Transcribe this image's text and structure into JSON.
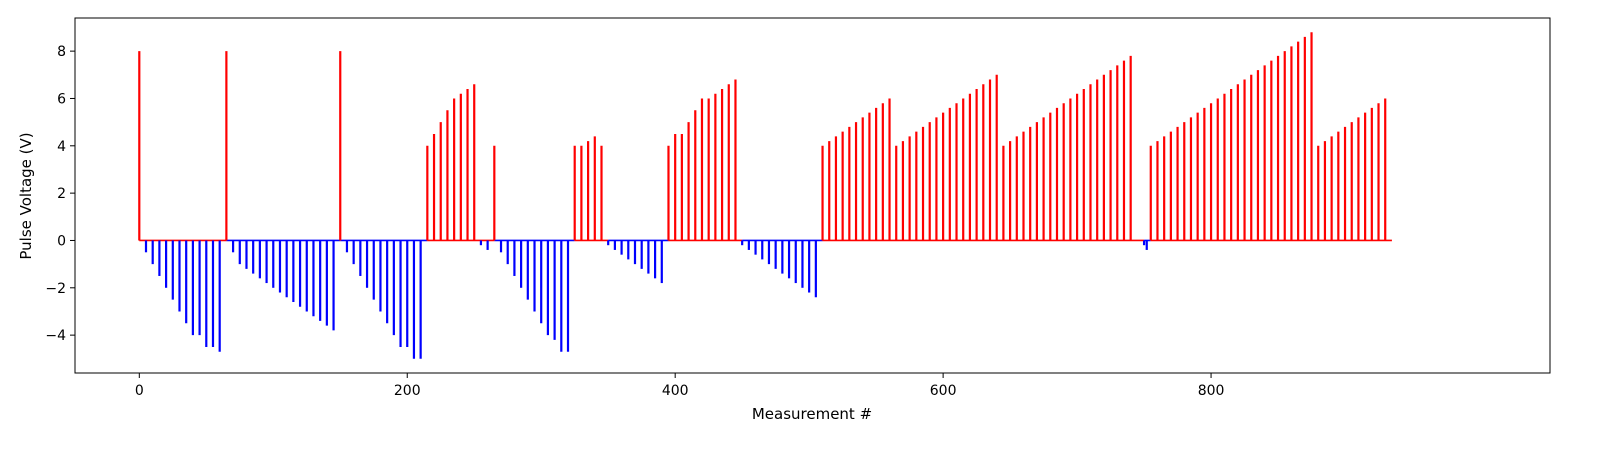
{
  "chart_data": {
    "type": "bar",
    "title": "",
    "xlabel": "Measurement #",
    "ylabel": "Pulse Voltage (V)",
    "xlim": [
      -48,
      1053
    ],
    "ylim": [
      -5.6,
      9.4
    ],
    "xticks": [
      0,
      200,
      400,
      600,
      800
    ],
    "yticks": [
      -4,
      -2,
      0,
      2,
      4,
      6,
      8
    ],
    "grid": false,
    "legend": "none",
    "colors": {
      "positive": "#ff0000",
      "negative": "#0000ff",
      "baseline_positive": "#ff0000",
      "baseline_negative": "#0000ff"
    },
    "series": [
      {
        "color": "#ff0000",
        "points": [
          [
            0,
            8.0
          ],
          [
            65,
            8.0
          ],
          [
            150,
            8.0
          ],
          [
            215,
            4.0
          ],
          [
            220,
            4.5
          ],
          [
            225,
            5.0
          ],
          [
            230,
            5.5
          ],
          [
            235,
            6.0
          ],
          [
            240,
            6.2
          ],
          [
            245,
            6.4
          ],
          [
            250,
            6.6
          ],
          [
            265,
            4.0
          ],
          [
            325,
            4.0
          ],
          [
            330,
            4.0
          ],
          [
            335,
            4.2
          ],
          [
            340,
            4.4
          ],
          [
            345,
            4.0
          ],
          [
            395,
            4.0
          ],
          [
            400,
            4.5
          ],
          [
            405,
            4.5
          ],
          [
            410,
            5.0
          ],
          [
            415,
            5.5
          ],
          [
            420,
            6.0
          ],
          [
            425,
            6.0
          ],
          [
            430,
            6.2
          ],
          [
            435,
            6.4
          ],
          [
            440,
            6.6
          ],
          [
            445,
            6.8
          ],
          [
            510,
            4.0
          ],
          [
            515,
            4.2
          ],
          [
            520,
            4.4
          ],
          [
            525,
            4.6
          ],
          [
            530,
            4.8
          ],
          [
            535,
            5.0
          ],
          [
            540,
            5.2
          ],
          [
            545,
            5.4
          ],
          [
            550,
            5.6
          ],
          [
            555,
            5.8
          ],
          [
            560,
            6.0
          ],
          [
            565,
            4.0
          ],
          [
            570,
            4.2
          ],
          [
            575,
            4.4
          ],
          [
            580,
            4.6
          ],
          [
            585,
            4.8
          ],
          [
            590,
            5.0
          ],
          [
            595,
            5.2
          ],
          [
            600,
            5.4
          ],
          [
            605,
            5.6
          ],
          [
            610,
            5.8
          ],
          [
            615,
            6.0
          ],
          [
            620,
            6.2
          ],
          [
            625,
            6.4
          ],
          [
            630,
            6.6
          ],
          [
            635,
            6.8
          ],
          [
            640,
            7.0
          ],
          [
            645,
            4.0
          ],
          [
            650,
            4.2
          ],
          [
            655,
            4.4
          ],
          [
            660,
            4.6
          ],
          [
            665,
            4.8
          ],
          [
            670,
            5.0
          ],
          [
            675,
            5.2
          ],
          [
            680,
            5.4
          ],
          [
            685,
            5.6
          ],
          [
            690,
            5.8
          ],
          [
            695,
            6.0
          ],
          [
            700,
            6.2
          ],
          [
            705,
            6.4
          ],
          [
            710,
            6.6
          ],
          [
            715,
            6.8
          ],
          [
            720,
            7.0
          ],
          [
            725,
            7.2
          ],
          [
            730,
            7.4
          ],
          [
            735,
            7.6
          ],
          [
            740,
            7.8
          ],
          [
            755,
            4.0
          ],
          [
            760,
            4.2
          ],
          [
            765,
            4.4
          ],
          [
            770,
            4.6
          ],
          [
            775,
            4.8
          ],
          [
            780,
            5.0
          ],
          [
            785,
            5.2
          ],
          [
            790,
            5.4
          ],
          [
            795,
            5.6
          ],
          [
            800,
            5.8
          ],
          [
            805,
            6.0
          ],
          [
            810,
            6.2
          ],
          [
            815,
            6.4
          ],
          [
            820,
            6.6
          ],
          [
            825,
            6.8
          ],
          [
            830,
            7.0
          ],
          [
            835,
            7.2
          ],
          [
            840,
            7.4
          ],
          [
            845,
            7.6
          ],
          [
            850,
            7.8
          ],
          [
            855,
            8.0
          ],
          [
            860,
            8.2
          ],
          [
            865,
            8.4
          ],
          [
            870,
            8.6
          ],
          [
            875,
            8.8
          ],
          [
            880,
            4.0
          ],
          [
            885,
            4.2
          ],
          [
            890,
            4.4
          ],
          [
            895,
            4.6
          ],
          [
            900,
            4.8
          ],
          [
            905,
            5.0
          ],
          [
            910,
            5.2
          ],
          [
            915,
            5.4
          ],
          [
            920,
            5.6
          ],
          [
            925,
            5.8
          ],
          [
            930,
            6.0
          ]
        ]
      },
      {
        "color": "#0000ff",
        "points": [
          [
            5,
            -0.5
          ],
          [
            10,
            -1.0
          ],
          [
            15,
            -1.5
          ],
          [
            20,
            -2.0
          ],
          [
            25,
            -2.5
          ],
          [
            30,
            -3.0
          ],
          [
            35,
            -3.5
          ],
          [
            40,
            -4.0
          ],
          [
            45,
            -4.0
          ],
          [
            50,
            -4.5
          ],
          [
            55,
            -4.5
          ],
          [
            60,
            -4.7
          ],
          [
            70,
            -0.5
          ],
          [
            75,
            -1.0
          ],
          [
            80,
            -1.2
          ],
          [
            85,
            -1.4
          ],
          [
            90,
            -1.6
          ],
          [
            95,
            -1.8
          ],
          [
            100,
            -2.0
          ],
          [
            105,
            -2.2
          ],
          [
            110,
            -2.4
          ],
          [
            115,
            -2.6
          ],
          [
            120,
            -2.8
          ],
          [
            125,
            -3.0
          ],
          [
            130,
            -3.2
          ],
          [
            135,
            -3.4
          ],
          [
            140,
            -3.6
          ],
          [
            145,
            -3.8
          ],
          [
            155,
            -0.5
          ],
          [
            160,
            -1.0
          ],
          [
            165,
            -1.5
          ],
          [
            170,
            -2.0
          ],
          [
            175,
            -2.5
          ],
          [
            180,
            -3.0
          ],
          [
            185,
            -3.5
          ],
          [
            190,
            -4.0
          ],
          [
            195,
            -4.5
          ],
          [
            200,
            -4.5
          ],
          [
            205,
            -5.0
          ],
          [
            210,
            -5.0
          ],
          [
            255,
            -0.2
          ],
          [
            260,
            -0.4
          ],
          [
            270,
            -0.5
          ],
          [
            275,
            -1.0
          ],
          [
            280,
            -1.5
          ],
          [
            285,
            -2.0
          ],
          [
            290,
            -2.5
          ],
          [
            295,
            -3.0
          ],
          [
            300,
            -3.5
          ],
          [
            305,
            -4.0
          ],
          [
            310,
            -4.2
          ],
          [
            315,
            -4.7
          ],
          [
            320,
            -4.7
          ],
          [
            350,
            -0.2
          ],
          [
            355,
            -0.4
          ],
          [
            360,
            -0.6
          ],
          [
            365,
            -0.8
          ],
          [
            370,
            -1.0
          ],
          [
            375,
            -1.2
          ],
          [
            380,
            -1.4
          ],
          [
            385,
            -1.6
          ],
          [
            390,
            -1.8
          ],
          [
            450,
            -0.2
          ],
          [
            455,
            -0.4
          ],
          [
            460,
            -0.6
          ],
          [
            465,
            -0.8
          ],
          [
            470,
            -1.0
          ],
          [
            475,
            -1.2
          ],
          [
            480,
            -1.4
          ],
          [
            485,
            -1.6
          ],
          [
            490,
            -1.8
          ],
          [
            495,
            -2.0
          ],
          [
            500,
            -2.2
          ],
          [
            505,
            -2.4
          ],
          [
            750,
            -0.2
          ],
          [
            752,
            -0.4
          ]
        ]
      }
    ],
    "baseline": [
      {
        "from": 0,
        "to": 65,
        "color": "#ff0000"
      },
      {
        "from": 65,
        "to": 150,
        "color": "#0000ff"
      },
      {
        "from": 150,
        "to": 215,
        "color": "#0000ff"
      },
      {
        "from": 215,
        "to": 265,
        "color": "#ff0000"
      },
      {
        "from": 265,
        "to": 325,
        "color": "#0000ff"
      },
      {
        "from": 325,
        "to": 350,
        "color": "#ff0000"
      },
      {
        "from": 350,
        "to": 395,
        "color": "#0000ff"
      },
      {
        "from": 395,
        "to": 450,
        "color": "#ff0000"
      },
      {
        "from": 450,
        "to": 510,
        "color": "#0000ff"
      },
      {
        "from": 510,
        "to": 750,
        "color": "#ff0000"
      },
      {
        "from": 750,
        "to": 755,
        "color": "#0000ff"
      },
      {
        "from": 755,
        "to": 935,
        "color": "#ff0000"
      }
    ]
  }
}
